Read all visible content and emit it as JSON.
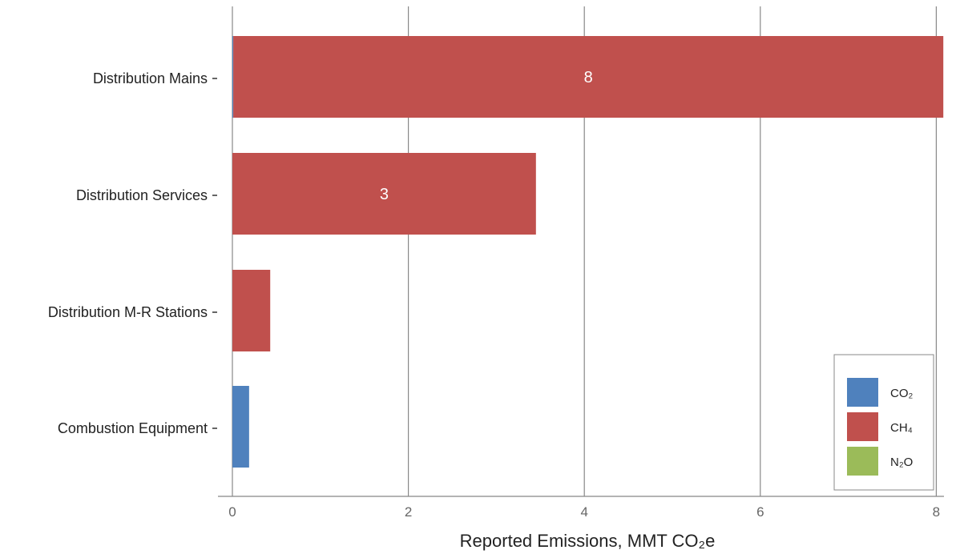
{
  "chart_data": {
    "type": "bar",
    "orientation": "horizontal",
    "stacked": true,
    "categories": [
      "Distribution Mains",
      "Distribution Services",
      "Distribution M-R Stations",
      "Combustion Equipment"
    ],
    "series": [
      {
        "name": "CO₂",
        "color": "#4f81bd",
        "values": [
          0.01,
          0,
          0,
          0.19
        ]
      },
      {
        "name": "CH₄",
        "color": "#c0504d",
        "values": [
          8.07,
          3.45,
          0.43,
          0
        ]
      },
      {
        "name": "N₂O",
        "color": "#9bbb59",
        "values": [
          0,
          0,
          0,
          0
        ]
      }
    ],
    "data_labels": [
      "8",
      "3",
      "",
      ""
    ],
    "xlabel": "Reported Emissions, MMT CO₂e",
    "ylabel": "",
    "xlim": [
      0,
      8.1
    ],
    "xticks": [
      0,
      2,
      4,
      6,
      8
    ],
    "grid": "vertical",
    "legend": "bottom-right"
  }
}
